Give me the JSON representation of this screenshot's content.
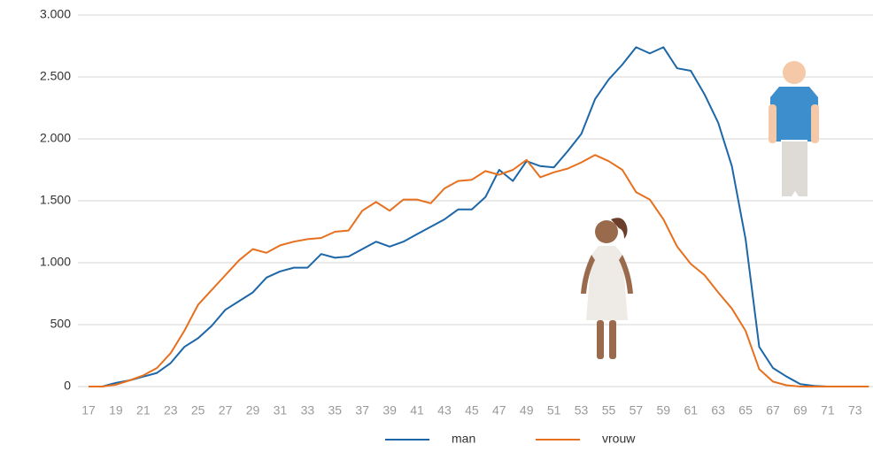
{
  "chart_data": {
    "type": "line",
    "categories": [
      "17",
      null,
      "19",
      null,
      "21",
      null,
      "23",
      null,
      "25",
      null,
      "27",
      null,
      "29",
      null,
      "31",
      null,
      "33",
      null,
      "35",
      null,
      "37",
      null,
      "39",
      null,
      "41",
      null,
      "43",
      null,
      "45",
      null,
      "47",
      null,
      "49",
      null,
      "51",
      null,
      "53",
      null,
      "55",
      null,
      "57",
      null,
      "59",
      null,
      "61",
      null,
      "63",
      null,
      "65",
      null,
      "67",
      null,
      "69",
      null,
      "71",
      null,
      "73",
      null
    ],
    "series": [
      {
        "name": "man",
        "color": "#1d67a8",
        "values": [
          0,
          0,
          30,
          50,
          80,
          110,
          190,
          320,
          390,
          490,
          620,
          690,
          760,
          880,
          930,
          960,
          960,
          1070,
          1040,
          1050,
          1110,
          1170,
          1130,
          1170,
          1230,
          1290,
          1350,
          1430,
          1430,
          1530,
          1750,
          1660,
          1820,
          1780,
          1770,
          1900,
          2040,
          2320,
          2480,
          2600,
          2740,
          2690,
          2740,
          2570,
          2550,
          2360,
          2130,
          1780,
          1190,
          320,
          150,
          80,
          20,
          5,
          0,
          0,
          0,
          0
        ]
      },
      {
        "name": "vrouw",
        "color": "#e6701e",
        "values": [
          0,
          0,
          15,
          50,
          90,
          150,
          270,
          450,
          660,
          780,
          900,
          1020,
          1110,
          1080,
          1140,
          1170,
          1190,
          1200,
          1250,
          1260,
          1420,
          1490,
          1420,
          1510,
          1510,
          1480,
          1600,
          1660,
          1670,
          1740,
          1710,
          1750,
          1830,
          1690,
          1730,
          1760,
          1810,
          1870,
          1820,
          1750,
          1570,
          1510,
          1350,
          1130,
          990,
          900,
          760,
          630,
          450,
          140,
          40,
          10,
          0,
          0,
          0,
          0,
          0,
          0
        ]
      }
    ],
    "ylim": [
      0,
      3000
    ],
    "yticks": [
      0,
      500,
      {
        "value": 1000,
        "label": "1.000"
      },
      {
        "value": 1500,
        "label": "1.500"
      },
      {
        "value": 2000,
        "label": "2.000"
      },
      {
        "value": 2500,
        "label": "2.500"
      },
      {
        "value": 3000,
        "label": "3.000"
      }
    ],
    "grid": true
  }
}
